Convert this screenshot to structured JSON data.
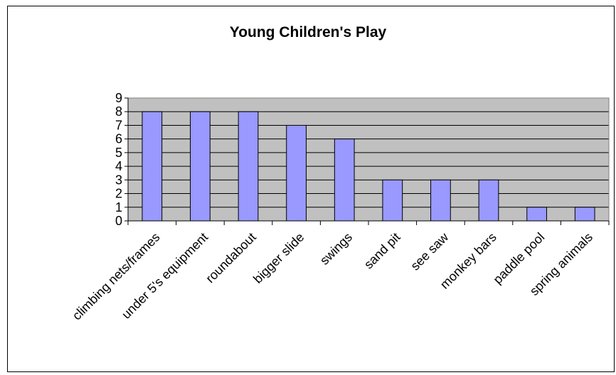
{
  "chart_data": {
    "type": "bar",
    "title": "Young Children's Play",
    "xlabel": "",
    "ylabel": "",
    "categories": [
      "climbing nets/frames",
      "under 5's equipment",
      "roundabout",
      "bigger slide",
      "swings",
      "sand pit",
      "see saw",
      "monkey bars",
      "paddle pool",
      "spring animals"
    ],
    "values": [
      8,
      8,
      8,
      7,
      6,
      3,
      3,
      3,
      1,
      1
    ],
    "ylim": [
      0,
      9
    ],
    "yticks": [
      "0",
      "1",
      "2",
      "3",
      "4",
      "5",
      "6",
      "7",
      "8",
      "9"
    ],
    "grid": true,
    "legend": "none",
    "colors": {
      "bar_fill": "#9999ff",
      "plot_background": "#c0c0c0",
      "gridline": "#000000"
    }
  }
}
